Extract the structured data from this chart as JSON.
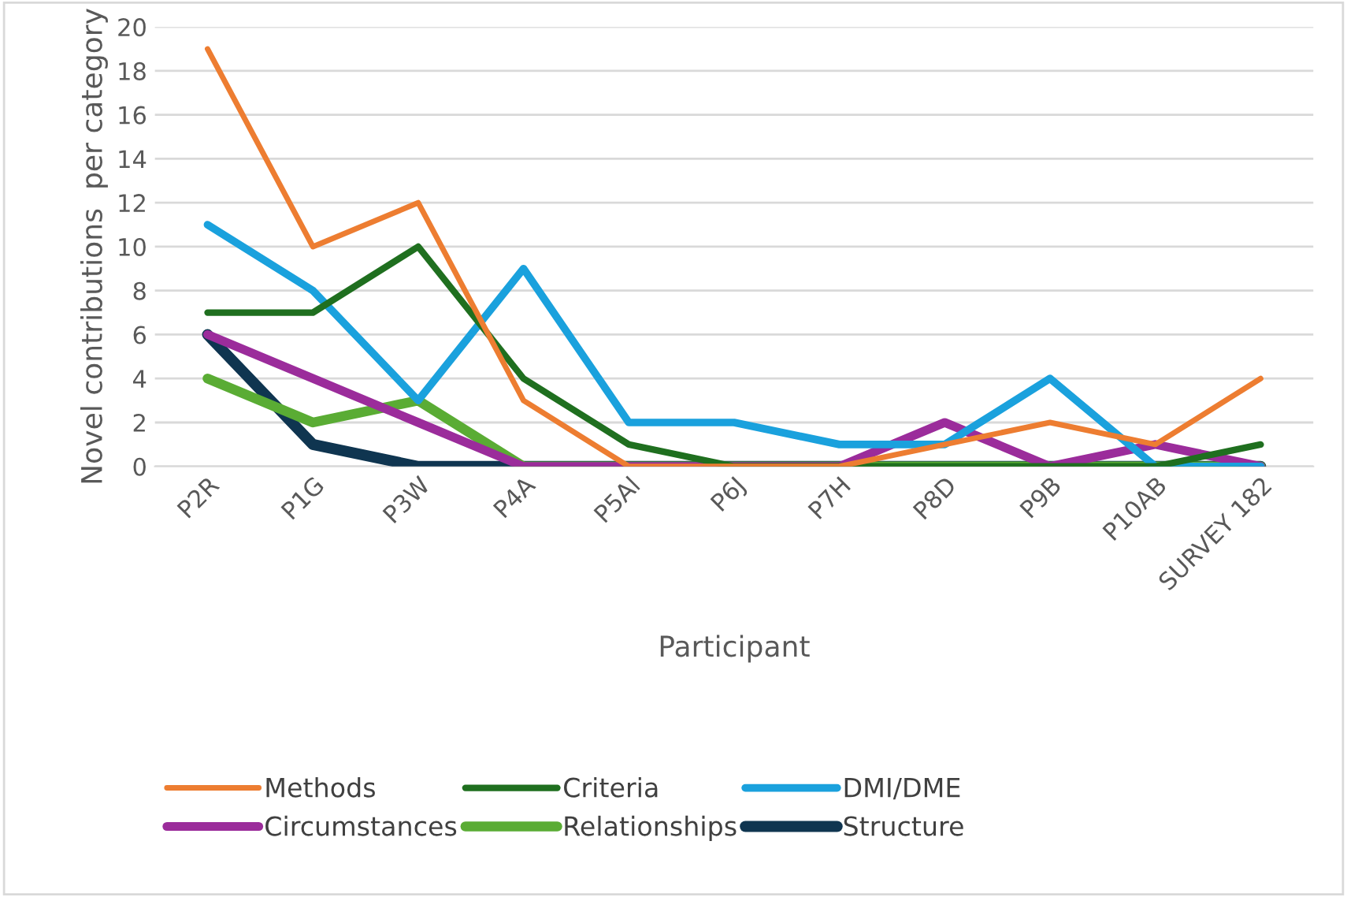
{
  "chart_data": {
    "type": "line",
    "xlabel": "Participant",
    "ylabel": "Novel contributions  per category",
    "categories": [
      "P2R",
      "P1G",
      "P3W",
      "P4A",
      "P5Al",
      "P6J",
      "P7H",
      "P8D",
      "P9B",
      "P10AB",
      "SURVEY 182"
    ],
    "series": [
      {
        "name": "Methods",
        "color": "#ed7d31",
        "values": [
          19,
          10,
          12,
          3,
          0,
          0,
          0,
          1,
          2,
          1,
          4
        ]
      },
      {
        "name": "Criteria",
        "color": "#1f6f1f",
        "values": [
          7,
          7,
          10,
          4,
          1,
          0,
          0,
          0,
          0,
          0,
          1
        ]
      },
      {
        "name": "DMI/DME",
        "color": "#1aa1dd",
        "values": [
          11,
          8,
          3,
          9,
          2,
          2,
          1,
          1,
          4,
          0,
          0
        ]
      },
      {
        "name": "Circumstances",
        "color": "#9b2c9b",
        "values": [
          6,
          4,
          2,
          0,
          0,
          0,
          0,
          2,
          0,
          1,
          0
        ]
      },
      {
        "name": "Relationships",
        "color": "#5aac34",
        "values": [
          4,
          2,
          3,
          0,
          0,
          0,
          0,
          0,
          0,
          0,
          0
        ]
      },
      {
        "name": "Structure",
        "color": "#0f3550",
        "values": [
          6,
          1,
          0,
          0,
          0,
          0,
          0,
          0,
          0,
          0,
          0
        ]
      }
    ],
    "ylim": [
      0,
      20
    ],
    "yticks": [
      0,
      2,
      4,
      6,
      8,
      10,
      12,
      14,
      16,
      18,
      20
    ],
    "grid": "y",
    "legend": "bottom",
    "marker": "none",
    "line_style": "solid"
  }
}
